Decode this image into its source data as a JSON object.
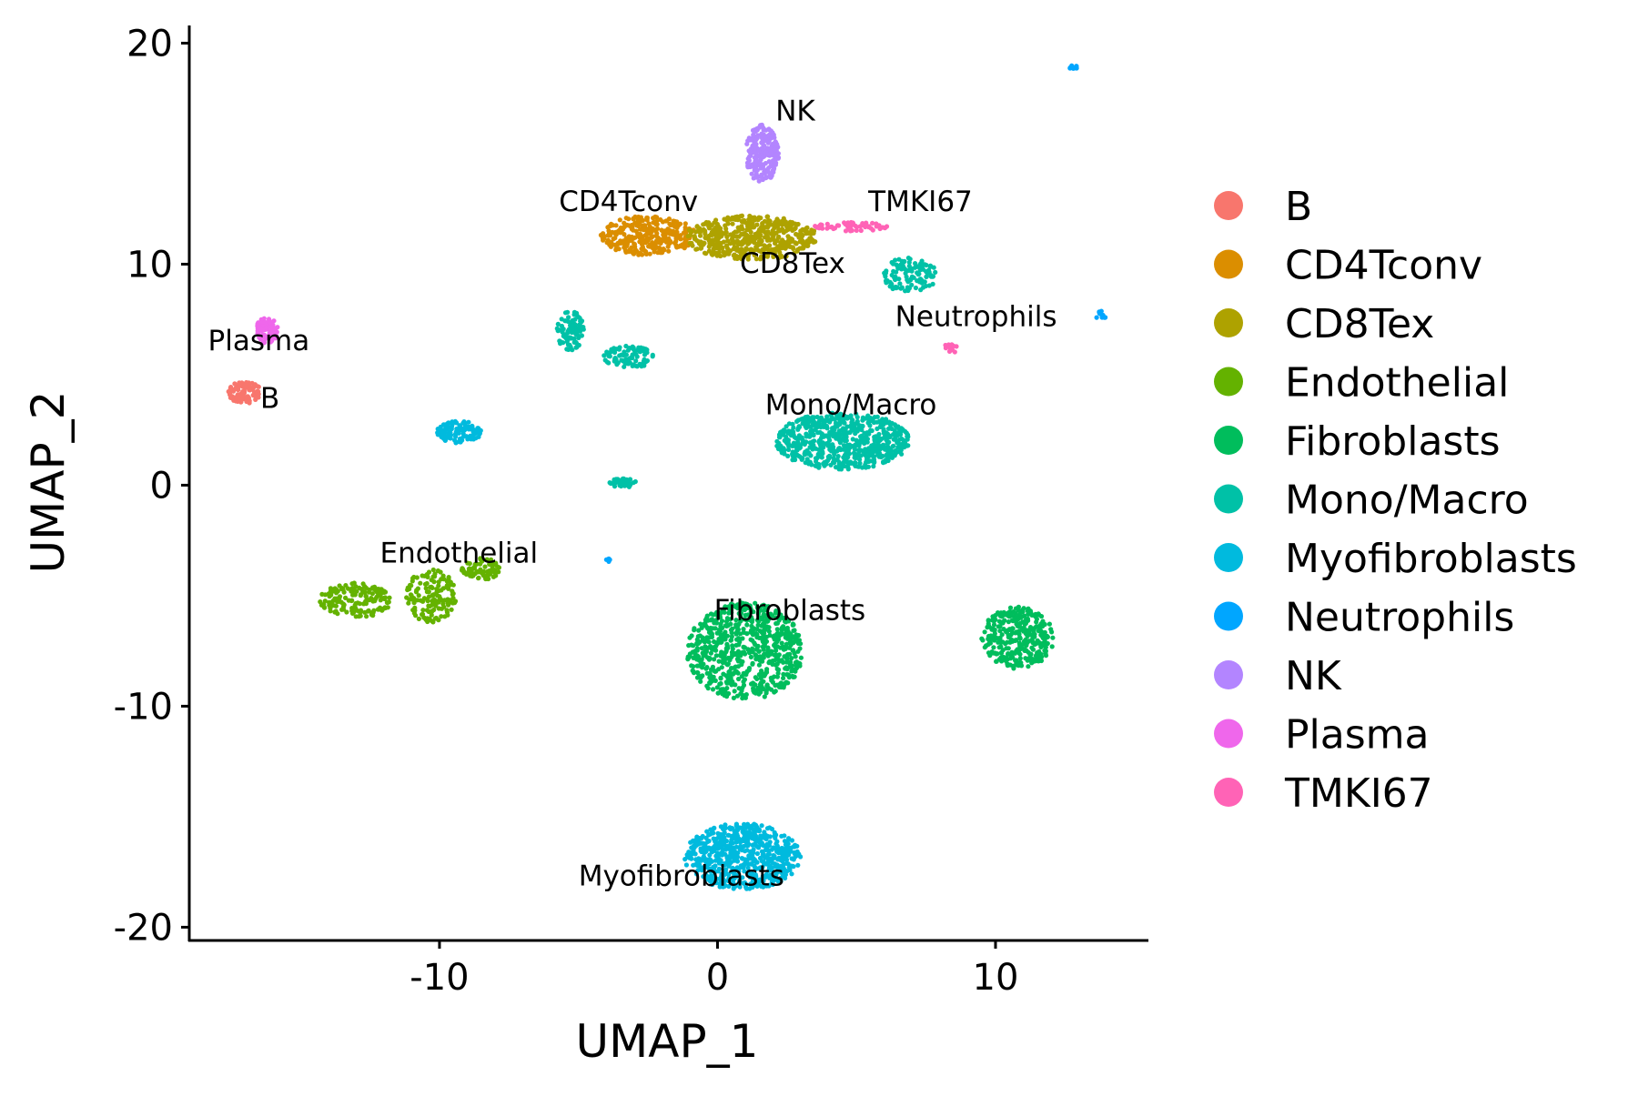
{
  "chart_data": {
    "type": "scatter",
    "title": "",
    "xlabel": "UMAP_1",
    "ylabel": "UMAP_2",
    "xlim": [
      -19,
      15.5
    ],
    "ylim": [
      -20.6,
      20.8
    ],
    "xticks": [
      -10,
      0,
      10
    ],
    "yticks": [
      20,
      10,
      0,
      -10,
      -20
    ],
    "xtick_labels": [
      "-10",
      "0",
      "10"
    ],
    "ytick_labels": [
      "20",
      "10",
      "0",
      "-10",
      "-20"
    ],
    "grid": false,
    "legend_position": "right",
    "series": [
      {
        "name": "B",
        "color": "#F8766D",
        "clusters": [
          {
            "cx": -17.0,
            "cy": 4.2,
            "rx": 0.6,
            "ry": 0.5,
            "n": 90
          }
        ]
      },
      {
        "name": "CD4Tconv",
        "color": "#DB8E00",
        "clusters": [
          {
            "cx": -2.5,
            "cy": 11.3,
            "rx": 1.7,
            "ry": 0.9,
            "n": 300
          }
        ]
      },
      {
        "name": "CD8Tex",
        "color": "#AEA200",
        "clusters": [
          {
            "cx": 1.2,
            "cy": 11.2,
            "rx": 2.4,
            "ry": 1.0,
            "n": 500
          }
        ]
      },
      {
        "name": "Endothelial",
        "color": "#64B200",
        "clusters": [
          {
            "cx": -13.0,
            "cy": -5.2,
            "rx": 1.3,
            "ry": 0.8,
            "n": 160
          },
          {
            "cx": -10.3,
            "cy": -5.0,
            "rx": 0.9,
            "ry": 1.2,
            "n": 140
          },
          {
            "cx": -8.5,
            "cy": -3.8,
            "rx": 0.7,
            "ry": 0.5,
            "n": 80
          }
        ]
      },
      {
        "name": "Fibroblasts",
        "color": "#00BD5C",
        "clusters": [
          {
            "cx": 1.0,
            "cy": -7.5,
            "rx": 2.1,
            "ry": 2.2,
            "n": 700
          },
          {
            "cx": 10.8,
            "cy": -6.9,
            "rx": 1.3,
            "ry": 1.4,
            "n": 330
          }
        ]
      },
      {
        "name": "Mono/Macro",
        "color": "#00C1A7",
        "clusters": [
          {
            "cx": 4.5,
            "cy": 2.0,
            "rx": 2.4,
            "ry": 1.3,
            "n": 650
          },
          {
            "cx": -5.3,
            "cy": 7.0,
            "rx": 0.5,
            "ry": 0.9,
            "n": 90
          },
          {
            "cx": -3.2,
            "cy": 5.8,
            "rx": 0.9,
            "ry": 0.5,
            "n": 80
          },
          {
            "cx": -3.4,
            "cy": 0.1,
            "rx": 0.5,
            "ry": 0.2,
            "n": 50
          },
          {
            "cx": 6.9,
            "cy": 9.5,
            "rx": 1.0,
            "ry": 0.8,
            "n": 110
          }
        ]
      },
      {
        "name": "Myofibroblasts",
        "color": "#00BADE",
        "clusters": [
          {
            "cx": 0.9,
            "cy": -16.8,
            "rx": 2.1,
            "ry": 1.5,
            "n": 650
          },
          {
            "cx": -9.3,
            "cy": 2.4,
            "rx": 0.8,
            "ry": 0.5,
            "n": 110
          }
        ]
      },
      {
        "name": "Neutrophils",
        "color": "#00A6FF",
        "clusters": [
          {
            "cx": 12.8,
            "cy": 18.9,
            "rx": 0.2,
            "ry": 0.1,
            "n": 10
          },
          {
            "cx": 13.8,
            "cy": 7.7,
            "rx": 0.2,
            "ry": 0.2,
            "n": 10
          },
          {
            "cx": -3.9,
            "cy": -3.4,
            "rx": 0.1,
            "ry": 0.1,
            "n": 6
          }
        ]
      },
      {
        "name": "NK",
        "color": "#B385FF",
        "clusters": [
          {
            "cx": 1.6,
            "cy": 15.0,
            "rx": 0.6,
            "ry": 1.3,
            "n": 210
          }
        ]
      },
      {
        "name": "Plasma",
        "color": "#EF67EB",
        "clusters": [
          {
            "cx": -16.2,
            "cy": 7.0,
            "rx": 0.4,
            "ry": 0.6,
            "n": 90
          }
        ]
      },
      {
        "name": "TMKI67",
        "color": "#FF63B6",
        "clusters": [
          {
            "cx": 4.8,
            "cy": 11.7,
            "rx": 1.3,
            "ry": 0.2,
            "n": 60
          },
          {
            "cx": 8.4,
            "cy": 6.2,
            "rx": 0.3,
            "ry": 0.2,
            "n": 16
          }
        ]
      }
    ],
    "cluster_labels": [
      {
        "text": "NK",
        "x": 2.8,
        "y": 16.5
      },
      {
        "text": "CD4Tconv",
        "x": -3.2,
        "y": 12.4
      },
      {
        "text": "TMKI67",
        "x": 7.3,
        "y": 12.4
      },
      {
        "text": "CD8Tex",
        "x": 2.7,
        "y": 9.6
      },
      {
        "text": "Neutrophils",
        "x": 9.3,
        "y": 7.2
      },
      {
        "text": "Plasma",
        "x": -16.5,
        "y": 6.1
      },
      {
        "text": "B",
        "x": -16.1,
        "y": 3.5
      },
      {
        "text": "Mono/Macro",
        "x": 4.8,
        "y": 3.2
      },
      {
        "text": "Endothelial",
        "x": -9.3,
        "y": -3.5
      },
      {
        "text": "Fibroblasts",
        "x": 2.6,
        "y": -6.1
      },
      {
        "text": "Myofibroblasts",
        "x": -1.3,
        "y": -18.1
      }
    ]
  }
}
